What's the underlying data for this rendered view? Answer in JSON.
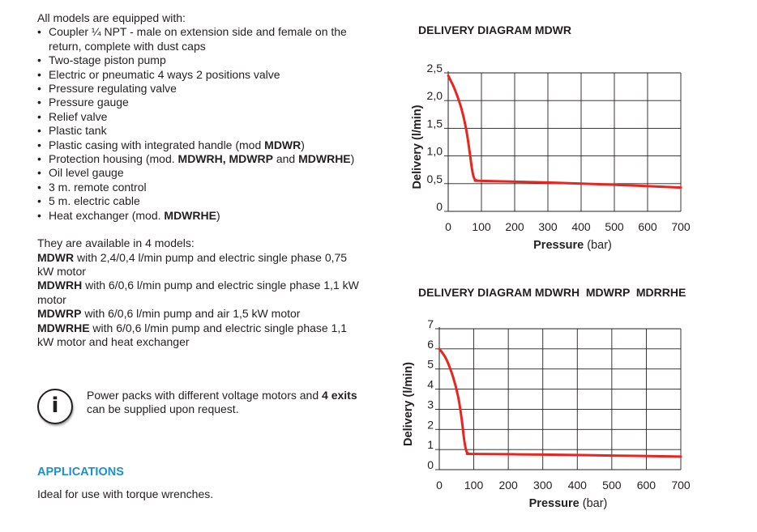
{
  "intro": "All models are equipped with:",
  "features": [
    {
      "parts": [
        {
          "t": "Coupler ¼ NPT - male on extension side and female on the return, complete with dust caps"
        }
      ]
    },
    {
      "parts": [
        {
          "t": "Two-stage piston pump"
        }
      ]
    },
    {
      "parts": [
        {
          "t": "Electric or pneumatic 4 ways 2 positions valve"
        }
      ]
    },
    {
      "parts": [
        {
          "t": "Pressure regulating valve"
        }
      ]
    },
    {
      "parts": [
        {
          "t": "Pressure gauge"
        }
      ]
    },
    {
      "parts": [
        {
          "t": "Relief valve"
        }
      ]
    },
    {
      "parts": [
        {
          "t": "Plastic tank"
        }
      ]
    },
    {
      "parts": [
        {
          "t": "Plastic casing with integrated handle (mod "
        },
        {
          "t": "MDWR",
          "b": true
        },
        {
          "t": ")"
        }
      ]
    },
    {
      "parts": [
        {
          "t": "Protection housing (mod. "
        },
        {
          "t": "MDWRH, MDWRP",
          "b": true
        },
        {
          "t": " and "
        },
        {
          "t": "MDWRHE",
          "b": true
        },
        {
          "t": ")"
        }
      ]
    },
    {
      "parts": [
        {
          "t": "Oil level gauge"
        }
      ]
    },
    {
      "parts": [
        {
          "t": "3 m. remote control"
        }
      ]
    },
    {
      "parts": [
        {
          "t": "5 m. electric cable"
        }
      ]
    },
    {
      "parts": [
        {
          "t": "Heat exchanger (mod. "
        },
        {
          "t": "MDWRHE",
          "b": true
        },
        {
          "t": ")"
        }
      ]
    }
  ],
  "models_intro": "They are available in 4 models:",
  "models": [
    {
      "name": "MDWR",
      "desc": " with 2,4/0,4 l/min pump and electric single phase 0,75 kW motor"
    },
    {
      "name": "MDWRH",
      "desc": " with 6/0,6 l/min pump and electric single phase 1,1 kW motor"
    },
    {
      "name": "MDWRP",
      "desc": " with 6/0,6 l/min pump and air 1,5 kW motor"
    },
    {
      "name": "MDWRHE",
      "desc": " with 6/0,6 l/min pump and electric single phase 1,1 kW motor and heat exchanger"
    }
  ],
  "info": {
    "icon": "info-icon",
    "icon_glyph": "i",
    "text_before": "Power packs with different voltage motors and ",
    "text_bold": "4 exits",
    "text_after": " can be supplied upon request."
  },
  "applications": {
    "title": "APPLICATIONS",
    "text": "Ideal for use with torque wrenches."
  },
  "curve_color": "#e8251f",
  "chart_data": [
    {
      "type": "line",
      "title": "DELIVERY DIAGRAM MDWR",
      "xlabel": "Pressure (bar)",
      "ylabel": "Delivery (l/min)",
      "xlim": [
        0,
        700
      ],
      "ylim": [
        0,
        2.5
      ],
      "x_ticks": [
        0,
        100,
        200,
        300,
        400,
        500,
        600,
        700
      ],
      "y_ticks": [
        0,
        0.5,
        1.0,
        1.5,
        2.0,
        2.5
      ],
      "y_tick_labels": [
        "0",
        "0,5",
        "1,0",
        "1,5",
        "2,0",
        "2,5"
      ],
      "grid": true,
      "series": [
        {
          "x": [
            0,
            20,
            40,
            55,
            65,
            72,
            78,
            85,
            100,
            300,
            500,
            700
          ],
          "y": [
            2.45,
            2.2,
            1.85,
            1.45,
            1.05,
            0.75,
            0.6,
            0.56,
            0.55,
            0.52,
            0.48,
            0.43
          ]
        }
      ]
    },
    {
      "type": "line",
      "title": "DELIVERY DIAGRAM MDWRH  MDWRP  MDRRHE",
      "xlabel": "Pressure (bar)",
      "ylabel": "Delivery (l/min)",
      "xlim": [
        0,
        700
      ],
      "ylim": [
        0,
        7
      ],
      "x_ticks": [
        0,
        100,
        200,
        300,
        400,
        500,
        600,
        700
      ],
      "y_ticks": [
        0,
        1,
        2,
        3,
        4,
        5,
        6,
        7
      ],
      "y_tick_labels": [
        "0",
        "1",
        "2",
        "3",
        "4",
        "5",
        "6",
        "7"
      ],
      "grid": true,
      "series": [
        {
          "x": [
            0,
            20,
            40,
            55,
            65,
            72,
            78,
            85,
            100,
            300,
            500,
            700
          ],
          "y": [
            6.0,
            5.5,
            4.6,
            3.6,
            2.5,
            1.5,
            0.95,
            0.8,
            0.78,
            0.75,
            0.7,
            0.65
          ]
        }
      ]
    }
  ]
}
